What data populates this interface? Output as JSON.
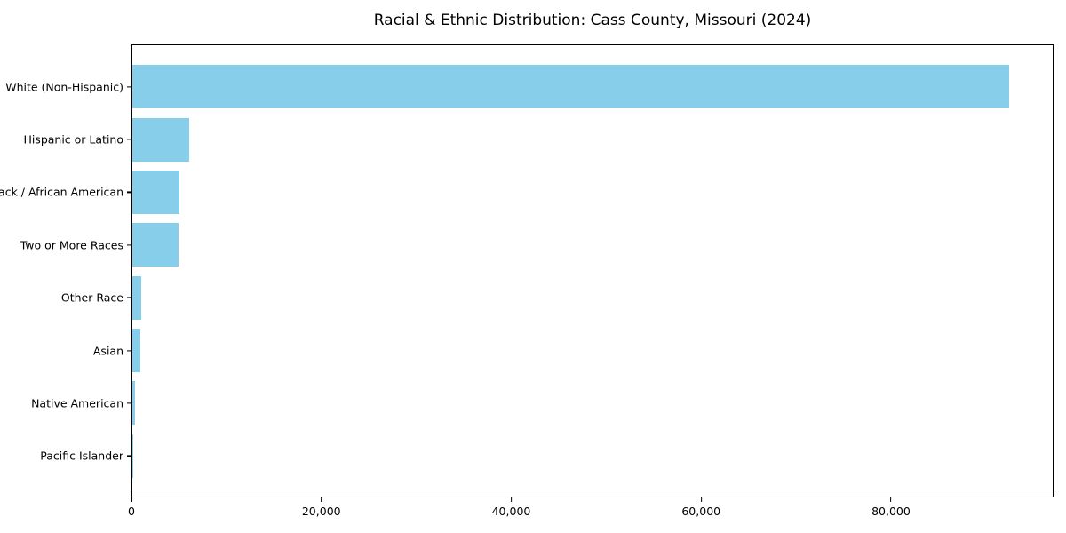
{
  "window": {
    "background": "#ffffff"
  },
  "chart_data": {
    "type": "bar",
    "orientation": "horizontal",
    "title": "Racial & Ethnic Distribution: Cass County, Missouri (2024)",
    "categories": [
      "White (Non-Hispanic)",
      "Hispanic or Latino",
      "Black / African American",
      "Two or More Races",
      "Other Race",
      "Asian",
      "Native American",
      "Pacific Islander"
    ],
    "values": [
      92500,
      6000,
      5000,
      4850,
      900,
      800,
      250,
      80
    ],
    "bar_color": "#87ceeb",
    "axis_color": "#000000",
    "text_color": "#000000",
    "xlabel": "",
    "ylabel": "",
    "xlim": [
      0,
      97125
    ],
    "xticks": [
      {
        "value": 0,
        "label": "0"
      },
      {
        "value": 20000,
        "label": "20,000"
      },
      {
        "value": 40000,
        "label": "40,000"
      },
      {
        "value": 60000,
        "label": "60,000"
      },
      {
        "value": 80000,
        "label": "80,000"
      }
    ],
    "grid": false,
    "legend": "none"
  }
}
